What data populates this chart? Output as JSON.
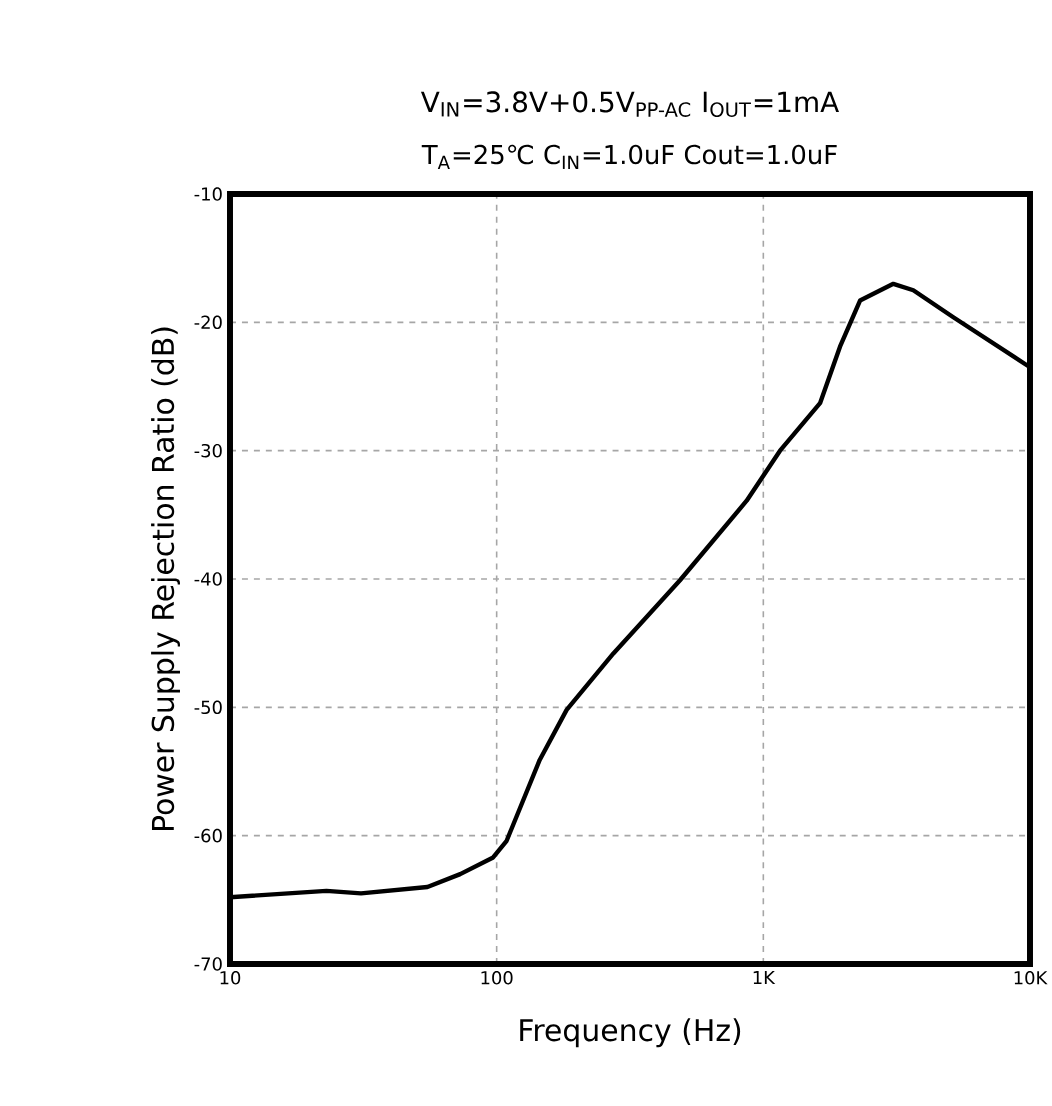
{
  "chart_data": {
    "type": "line",
    "subtitle": "V$_{IN}$=3.8V+0.5V$_{PP-AC}$ I$_{OUT}$=1mA",
    "annotations": [
      "T$_{A}$=25℃ C$_{IN}$=1.0uF Cout=1.0uF"
    ],
    "xlabel": "Frequency (Hz)",
    "ylabel": "Power Supply Rejection Ratio (dB)",
    "log": "x",
    "grid": true,
    "xlim": [
      10,
      10000
    ],
    "ylim": [
      -70,
      -10
    ],
    "xticks": [
      10,
      100,
      {
        "value": 1000,
        "label": "1K"
      },
      {
        "value": 10000,
        "label": "10K"
      }
    ],
    "yticks": [
      -70,
      -60,
      -50,
      -40,
      -30,
      -20,
      -10
    ],
    "series": [
      {
        "color": "#000000",
        "line_style": "solid",
        "x": [
          10,
          23,
          31,
          55,
          73,
          97,
          109,
          145,
          183,
          274,
          487,
          866,
          1155,
          1632,
          1939,
          2305,
          3073,
          3652,
          5158,
          10000
        ],
        "values": [
          -64.8,
          -64.3,
          -64.5,
          -64.0,
          -63.0,
          -61.7,
          -60.4,
          -54.1,
          -50.2,
          -45.8,
          -40.1,
          -33.9,
          -30.0,
          -26.3,
          -21.9,
          -18.3,
          -17.0,
          -17.5,
          -19.6,
          -23.5
        ]
      }
    ]
  }
}
